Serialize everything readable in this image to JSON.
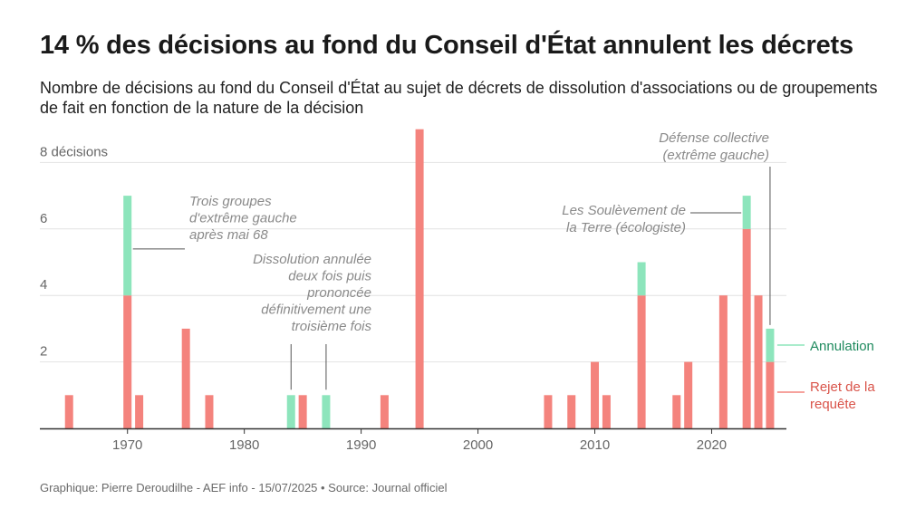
{
  "header": {
    "title": "14 % des décisions au fond du Conseil d'État annulent les décrets",
    "subtitle": "Nombre de décisions au fond du Conseil d'État au sujet de décrets de dissolution d'associations ou de groupements de fait en fonction de la nature de la décision"
  },
  "footer": {
    "credit": "Graphique: Pierre Deroudilhe - AEF info - 15/07/2025 • Source: Journal officiel"
  },
  "chart_data": {
    "type": "bar",
    "stacked": true,
    "xlim": [
      1962.5,
      2026.4
    ],
    "ylim": [
      0,
      9
    ],
    "x_ticks": [
      1970,
      1980,
      1990,
      2000,
      2010,
      2020
    ],
    "y_ticks": [
      2,
      4,
      6,
      8
    ],
    "y_tick_labels": [
      "2",
      "4",
      "6",
      "8 décisions"
    ],
    "grid": "horizontal",
    "colors": {
      "rejet": "#f4837d",
      "annulation": "#8de5bc",
      "grid": "#e2e2e2",
      "axis": "#333333",
      "leader": "#555555"
    },
    "series": [
      {
        "name": "Rejet de la requête",
        "color": "#f4837d",
        "x": [
          1965,
          1970,
          1971,
          1975,
          1977,
          1985,
          1992,
          1995,
          2006,
          2008,
          2010,
          2011,
          2014,
          2017,
          2018,
          2021,
          2023,
          2024,
          2025
        ],
        "values": [
          1,
          4,
          1,
          3,
          1,
          1,
          1,
          9,
          1,
          1,
          2,
          1,
          4,
          1,
          2,
          4,
          6,
          4,
          2
        ]
      },
      {
        "name": "Annulation",
        "color": "#8de5bc",
        "x": [
          1970,
          1984,
          1987,
          2014,
          2023,
          2025
        ],
        "values": [
          3,
          1,
          1,
          1,
          1,
          1
        ]
      }
    ],
    "legend": {
      "annulation": "Annulation",
      "rejet_line1": "Rejet de la",
      "rejet_line2": "requête"
    },
    "annotations": [
      {
        "id": "a1970",
        "lines": [
          "Trois groupes",
          "d'extrême gauche",
          "après mai 68"
        ],
        "year": 1970,
        "value": 5.4
      },
      {
        "id": "a1985",
        "lines": [
          "Dissolution annulée",
          "deux fois puis",
          "prononcée",
          "définitivement une",
          "troisième fois"
        ],
        "years": [
          1984,
          1987
        ],
        "value": 1
      },
      {
        "id": "a2023",
        "lines": [
          "Les Soulèvement de",
          "la Terre (écologiste)"
        ],
        "year": 2023,
        "value": 6.5
      },
      {
        "id": "a2025",
        "lines": [
          "Défense collective",
          "(extrême gauche)"
        ],
        "year": 2025,
        "value": 3
      }
    ]
  }
}
